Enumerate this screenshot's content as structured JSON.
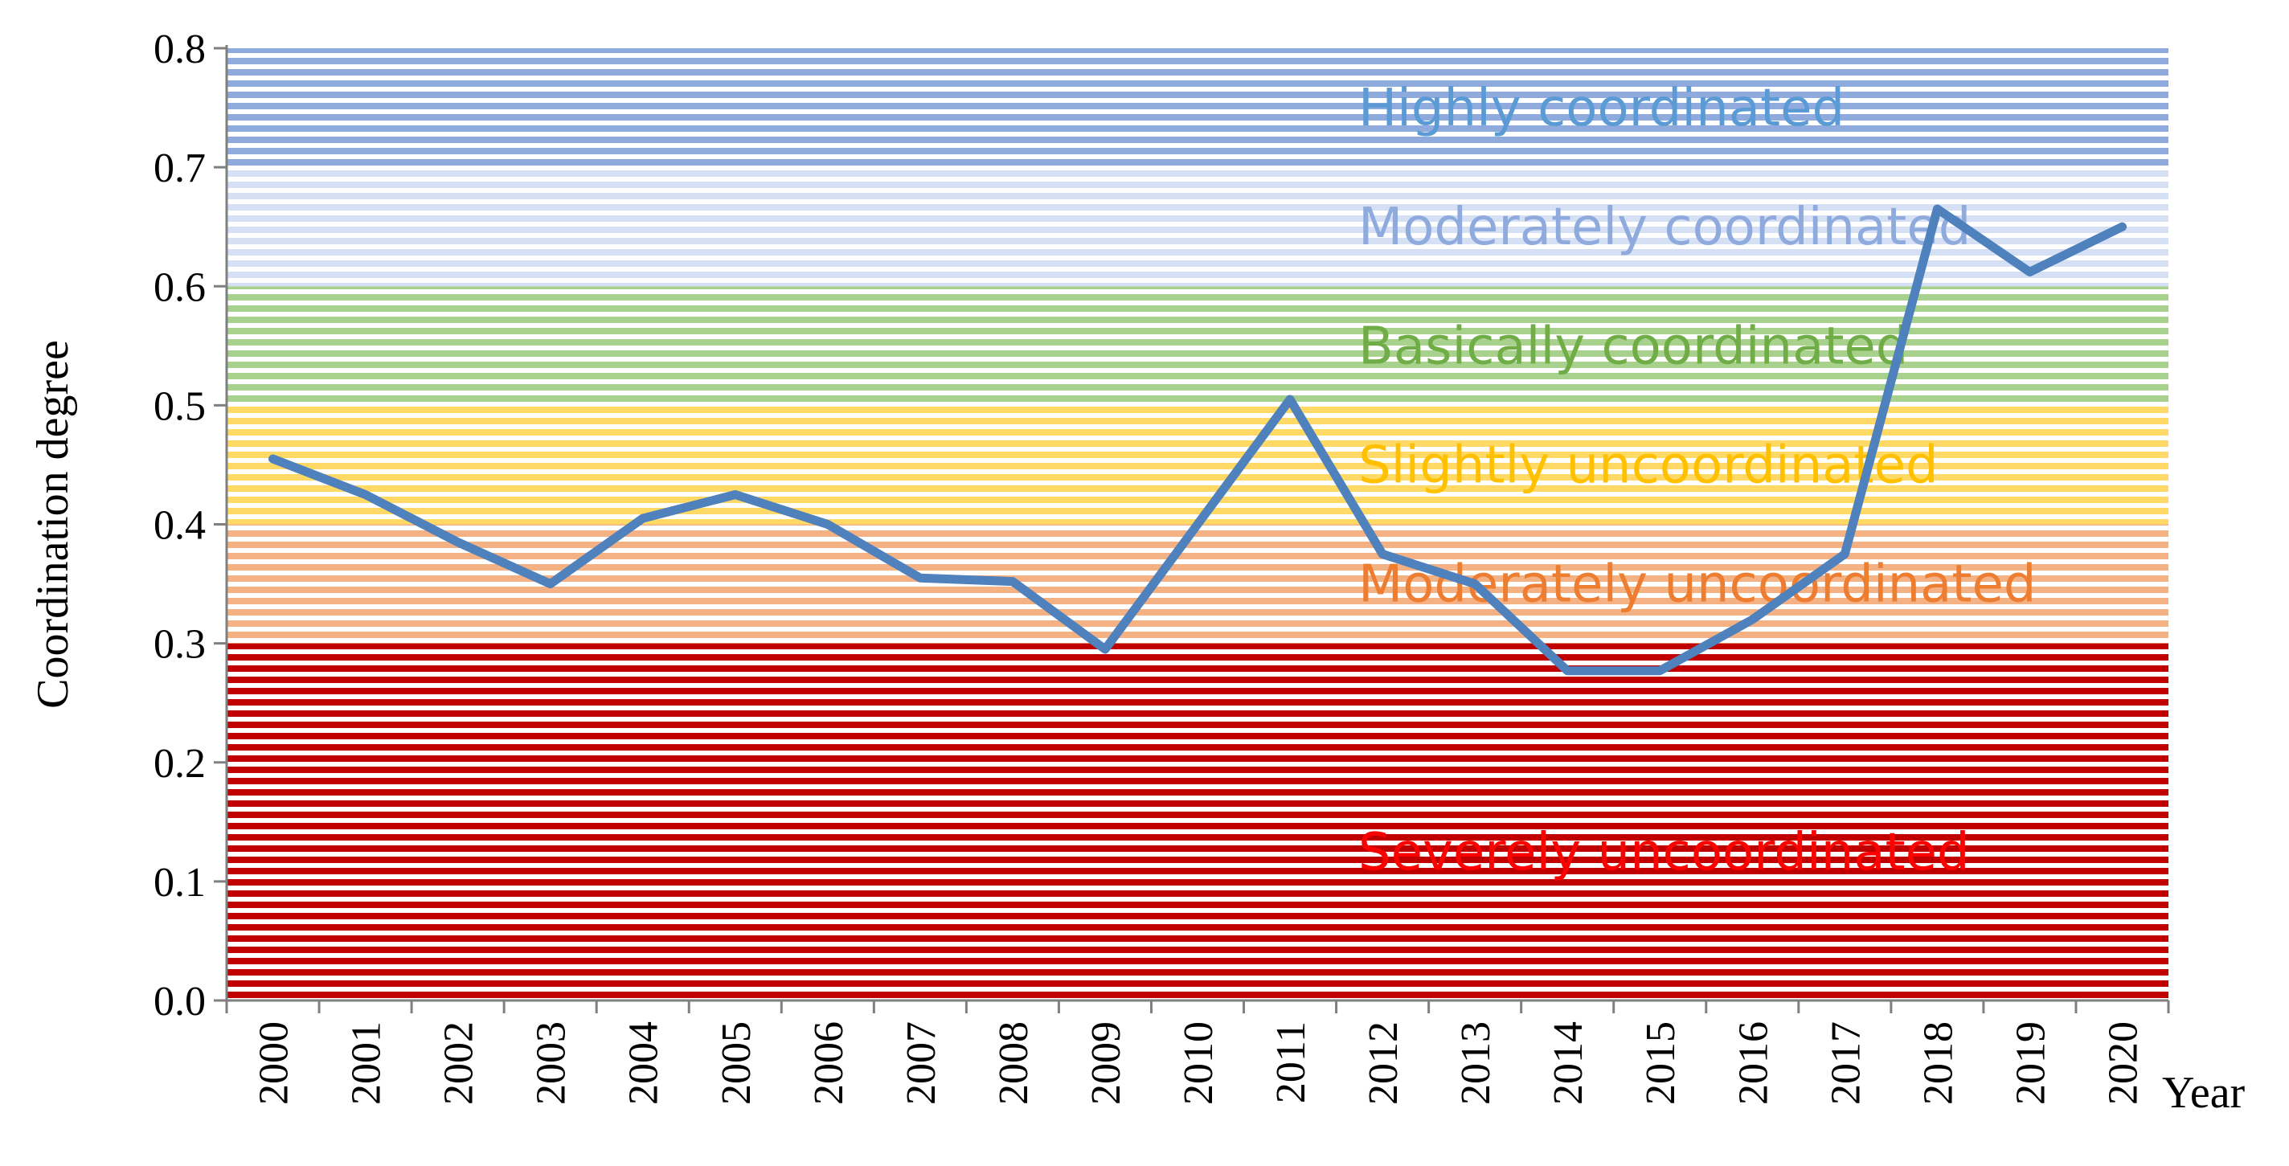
{
  "chart_data": {
    "type": "line",
    "title": "",
    "xlabel": "Year",
    "ylabel": "Coordination degree",
    "ylim": [
      0.0,
      0.8
    ],
    "yticks": [
      "0.0",
      "0.1",
      "0.2",
      "0.3",
      "0.4",
      "0.5",
      "0.6",
      "0.7",
      "0.8"
    ],
    "categories": [
      "2000",
      "2001",
      "2002",
      "2003",
      "2004",
      "2005",
      "2006",
      "2007",
      "2008",
      "2009",
      "2010",
      "2011",
      "2012",
      "2013",
      "2014",
      "2015",
      "2016",
      "2017",
      "2018",
      "2019",
      "2020"
    ],
    "series": [
      {
        "name": "Coordination degree",
        "color": "#4f81bd",
        "values": [
          0.455,
          0.425,
          0.385,
          0.35,
          0.405,
          0.425,
          0.4,
          0.355,
          0.352,
          0.295,
          0.4,
          0.505,
          0.375,
          0.35,
          0.277,
          0.277,
          0.32,
          0.375,
          0.665,
          0.612,
          0.65
        ]
      }
    ],
    "bands": [
      {
        "label": "Severely uncoordinated",
        "range": [
          0.0,
          0.3
        ],
        "fill": "#c00000",
        "text_color": "#ff0000"
      },
      {
        "label": "Moderately uncoordinated",
        "range": [
          0.3,
          0.4
        ],
        "fill": "#f4b183",
        "text_color": "#ed7d31"
      },
      {
        "label": "Slightly uncoordinated",
        "range": [
          0.4,
          0.5
        ],
        "fill": "#ffd966",
        "text_color": "#ffc000"
      },
      {
        "label": "Basically coordinated",
        "range": [
          0.5,
          0.6
        ],
        "fill": "#a9d18e",
        "text_color": "#70ad47"
      },
      {
        "label": "Moderately coordinated",
        "range": [
          0.6,
          0.7
        ],
        "fill": "#d6e0f5",
        "text_color": "#8faadc"
      },
      {
        "label": "Highly coordinated",
        "range": [
          0.7,
          0.8
        ],
        "fill": "#8faadc",
        "text_color": "#5b9bd5"
      }
    ]
  }
}
